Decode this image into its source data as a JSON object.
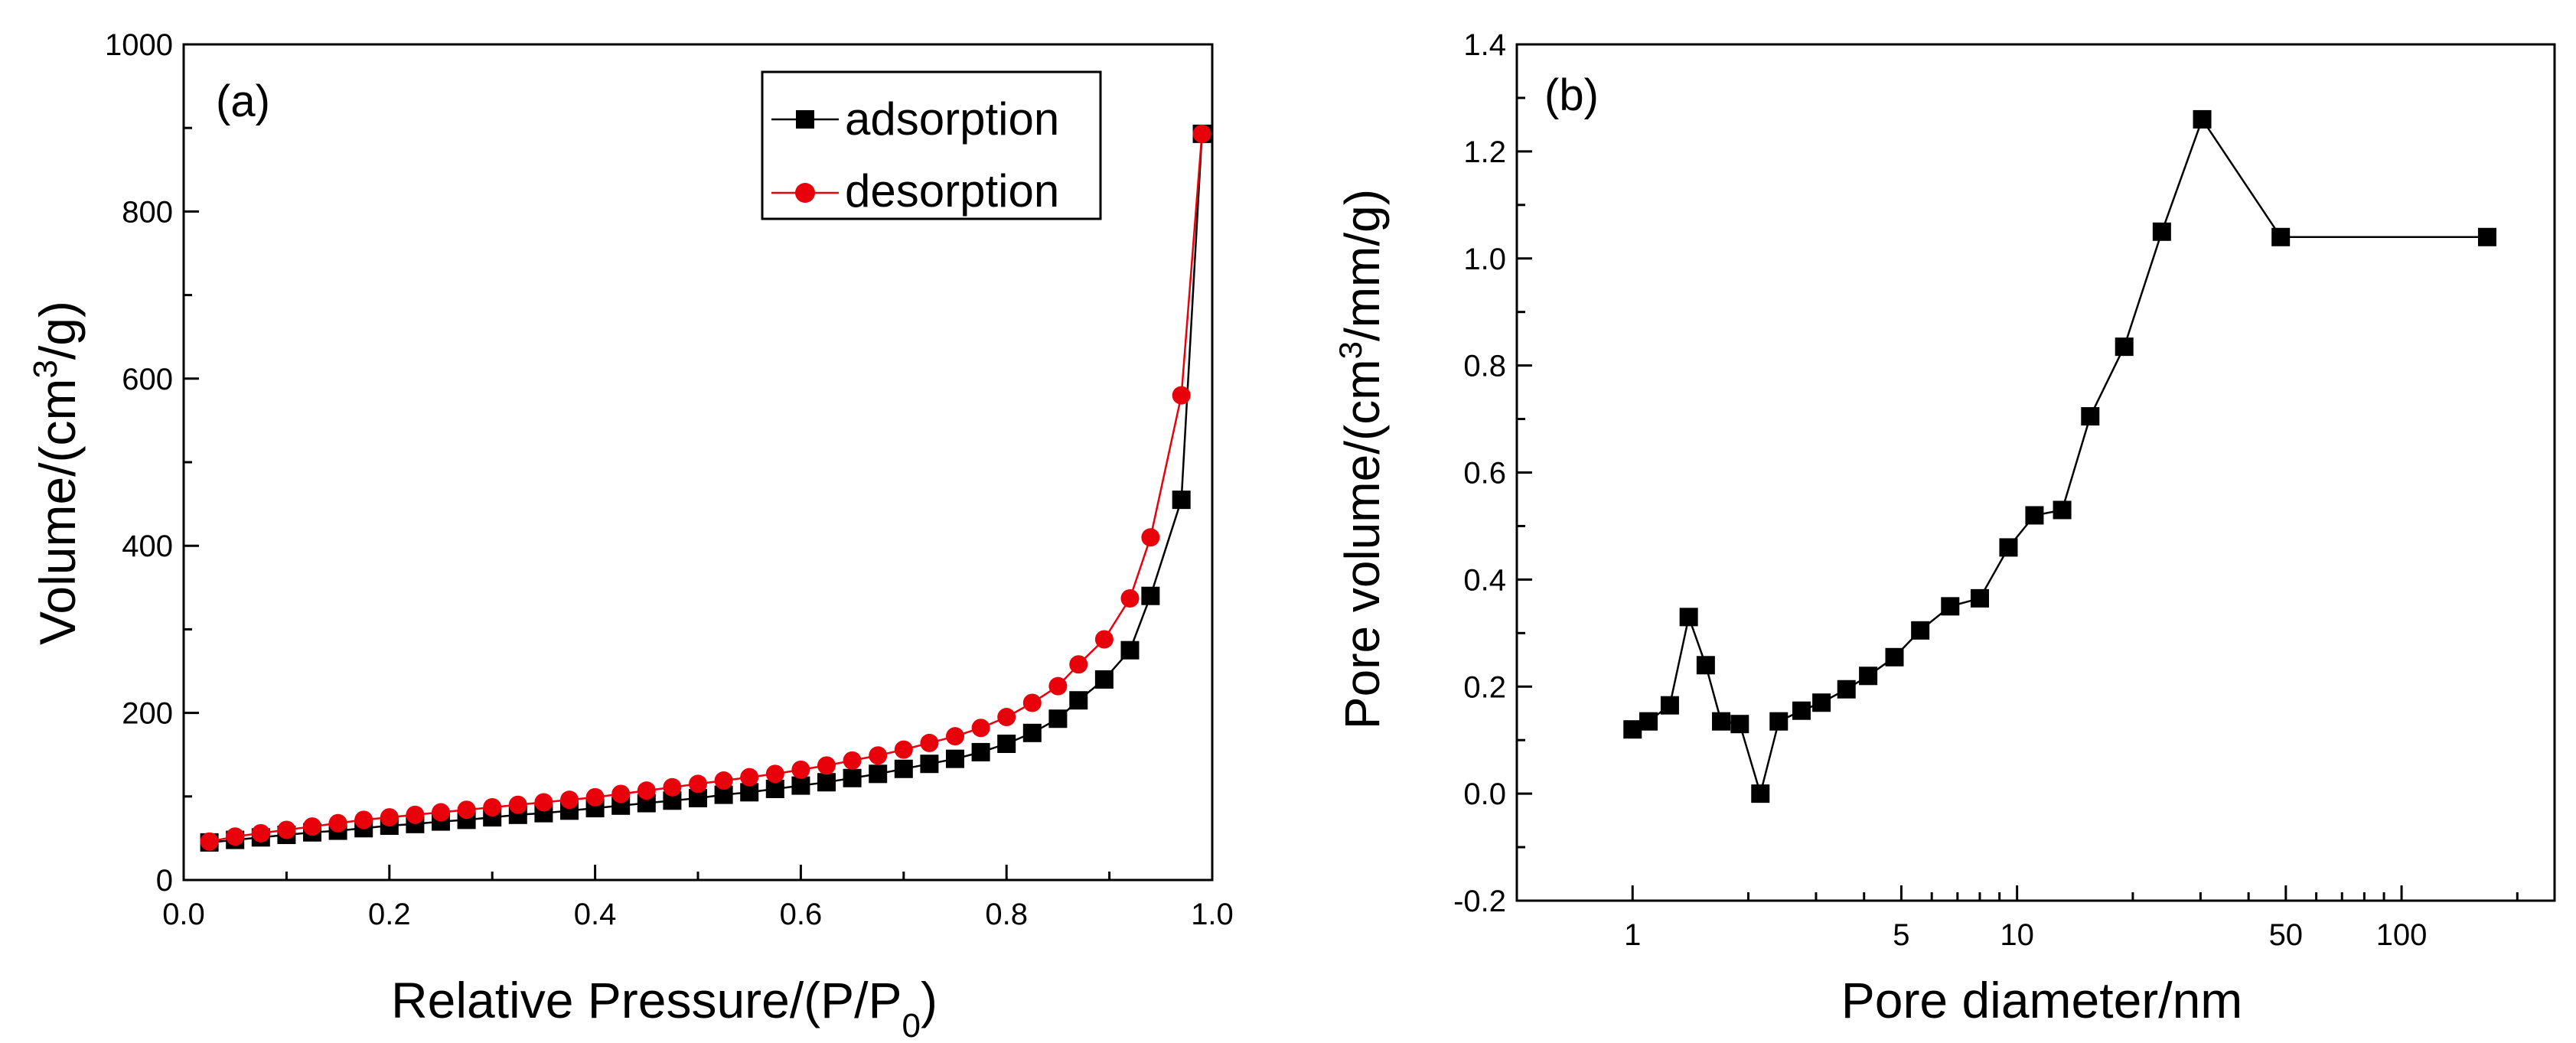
{
  "chart_data": [
    {
      "type": "line",
      "panel_label": "(a)",
      "xlabel": {
        "main": "Relative Pressure/(P/P",
        "sub": "0",
        "end": ")"
      },
      "ylabel": {
        "main": "Volume/(cm",
        "sup": "3",
        "end": "/g)"
      },
      "xlim": [
        0.0,
        1.0
      ],
      "ylim": [
        0,
        1000
      ],
      "xticks": [
        {
          "value": 0.0,
          "label": "0.0"
        },
        {
          "value": 0.2,
          "label": "0.2"
        },
        {
          "value": 0.4,
          "label": "0.4"
        },
        {
          "value": 0.6,
          "label": "0.6"
        },
        {
          "value": 0.8,
          "label": "0.8"
        },
        {
          "value": 1.0,
          "label": "1.0"
        }
      ],
      "yticks": [
        {
          "value": 0,
          "label": "0"
        },
        {
          "value": 200,
          "label": "200"
        },
        {
          "value": 400,
          "label": "400"
        },
        {
          "value": 600,
          "label": "600"
        },
        {
          "value": 800,
          "label": "800"
        },
        {
          "value": 1000,
          "label": "1000"
        }
      ],
      "legend_position": "top-right",
      "series": [
        {
          "name": "adsorption",
          "color": "#000000",
          "marker": "square",
          "x": [
            0.025,
            0.05,
            0.075,
            0.1,
            0.125,
            0.15,
            0.175,
            0.2,
            0.225,
            0.25,
            0.275,
            0.3,
            0.325,
            0.35,
            0.375,
            0.4,
            0.425,
            0.45,
            0.475,
            0.5,
            0.525,
            0.55,
            0.575,
            0.6,
            0.625,
            0.65,
            0.675,
            0.7,
            0.725,
            0.75,
            0.775,
            0.8,
            0.825,
            0.85,
            0.87,
            0.895,
            0.92,
            0.94,
            0.97,
            0.99
          ],
          "y": [
            45,
            48,
            51,
            54,
            57,
            59,
            62,
            65,
            67,
            70,
            72,
            75,
            78,
            80,
            83,
            86,
            89,
            92,
            95,
            98,
            102,
            105,
            109,
            113,
            117,
            122,
            127,
            133,
            139,
            145,
            153,
            163,
            176,
            193,
            215,
            240,
            275,
            340,
            455,
            893
          ]
        },
        {
          "name": "desorption",
          "color": "#e8000b",
          "marker": "circle",
          "x": [
            0.025,
            0.05,
            0.075,
            0.1,
            0.125,
            0.15,
            0.175,
            0.2,
            0.225,
            0.25,
            0.275,
            0.3,
            0.325,
            0.35,
            0.375,
            0.4,
            0.425,
            0.45,
            0.475,
            0.5,
            0.525,
            0.55,
            0.575,
            0.6,
            0.625,
            0.65,
            0.675,
            0.7,
            0.725,
            0.75,
            0.775,
            0.8,
            0.825,
            0.85,
            0.87,
            0.895,
            0.92,
            0.94,
            0.97,
            0.99
          ],
          "y": [
            46,
            52,
            56,
            60,
            64,
            68,
            72,
            75,
            78,
            81,
            84,
            87,
            90,
            93,
            96,
            99,
            103,
            107,
            111,
            115,
            119,
            123,
            127,
            132,
            137,
            143,
            149,
            156,
            164,
            172,
            182,
            195,
            212,
            232,
            258,
            288,
            337,
            410,
            580,
            893
          ]
        }
      ]
    },
    {
      "type": "line",
      "panel_label": "(b)",
      "xlabel": "Pore diameter/nm",
      "ylabel": {
        "main": "Pore volume/(cm",
        "sup": "3",
        "end": "/mm/g)"
      },
      "xscale": "log",
      "xlim": [
        0.5,
        250
      ],
      "ylim": [
        -0.2,
        1.4
      ],
      "xticks": [
        {
          "value": 1,
          "label": "1"
        },
        {
          "value": 5,
          "label": "5"
        },
        {
          "value": 10,
          "label": "10"
        },
        {
          "value": 50,
          "label": "50"
        },
        {
          "value": 100,
          "label": "100"
        }
      ],
      "yticks": [
        {
          "value": -0.2,
          "label": "-0.2"
        },
        {
          "value": 0.0,
          "label": "0.0"
        },
        {
          "value": 0.2,
          "label": "0.2"
        },
        {
          "value": 0.4,
          "label": "0.4"
        },
        {
          "value": 0.6,
          "label": "0.6"
        },
        {
          "value": 0.8,
          "label": "0.8"
        },
        {
          "value": 1.0,
          "label": "1.0"
        },
        {
          "value": 1.2,
          "label": "1.2"
        },
        {
          "value": 1.4,
          "label": "1.4"
        }
      ],
      "series": [
        {
          "name": "pore volume",
          "color": "#000000",
          "marker": "square",
          "x": [
            1.0,
            1.1,
            1.25,
            1.4,
            1.55,
            1.7,
            1.9,
            2.15,
            2.4,
            2.75,
            3.1,
            3.6,
            4.1,
            4.8,
            5.6,
            6.7,
            8.0,
            9.5,
            11.1,
            13.1,
            15.5,
            19.0,
            23.8,
            30.3,
            48.5,
            167
          ],
          "y": [
            0.12,
            0.135,
            0.165,
            0.33,
            0.24,
            0.135,
            0.13,
            0.0,
            0.135,
            0.155,
            0.17,
            0.195,
            0.22,
            0.255,
            0.305,
            0.35,
            0.365,
            0.46,
            0.52,
            0.53,
            0.705,
            0.835,
            1.05,
            1.26,
            1.04,
            1.04
          ]
        }
      ]
    }
  ]
}
